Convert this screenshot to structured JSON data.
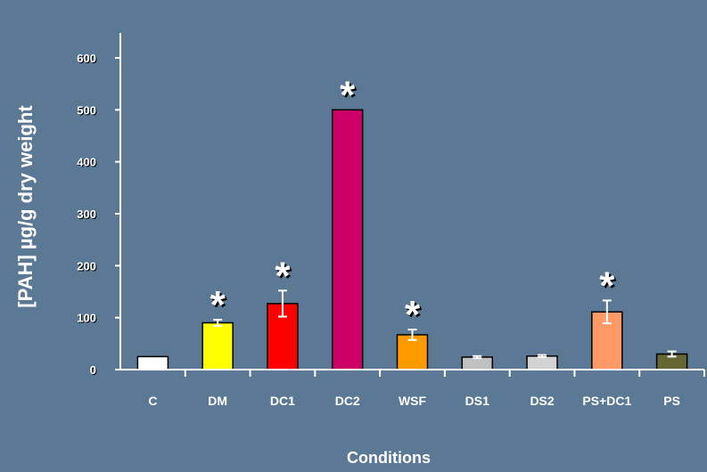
{
  "chart_data": {
    "type": "bar",
    "categories": [
      "C",
      "DM",
      "DC1",
      "DC2",
      "WSF",
      "DS1",
      "DS2",
      "PS+DC1",
      "PS"
    ],
    "values": [
      25,
      90,
      127,
      500,
      67,
      24,
      26,
      111,
      30
    ],
    "errors": [
      0,
      6,
      25,
      0,
      10,
      2,
      2,
      22,
      5
    ],
    "significant": [
      false,
      true,
      true,
      true,
      true,
      false,
      false,
      true,
      false
    ],
    "significance_marker": "*",
    "colors": [
      "#ffffff",
      "#ffff00",
      "#ff0000",
      "#cc0066",
      "#ff9900",
      "#c0c0c0",
      "#d3d3d3",
      "#ff9966",
      "#666633"
    ],
    "ylim": [
      0,
      600
    ],
    "yticks": [
      0,
      100,
      200,
      300,
      400,
      500,
      600
    ],
    "xlabel": "Conditions",
    "ylabel": "[PAH] µg/g dry weight",
    "title": ""
  },
  "background_color": "#5b7894"
}
